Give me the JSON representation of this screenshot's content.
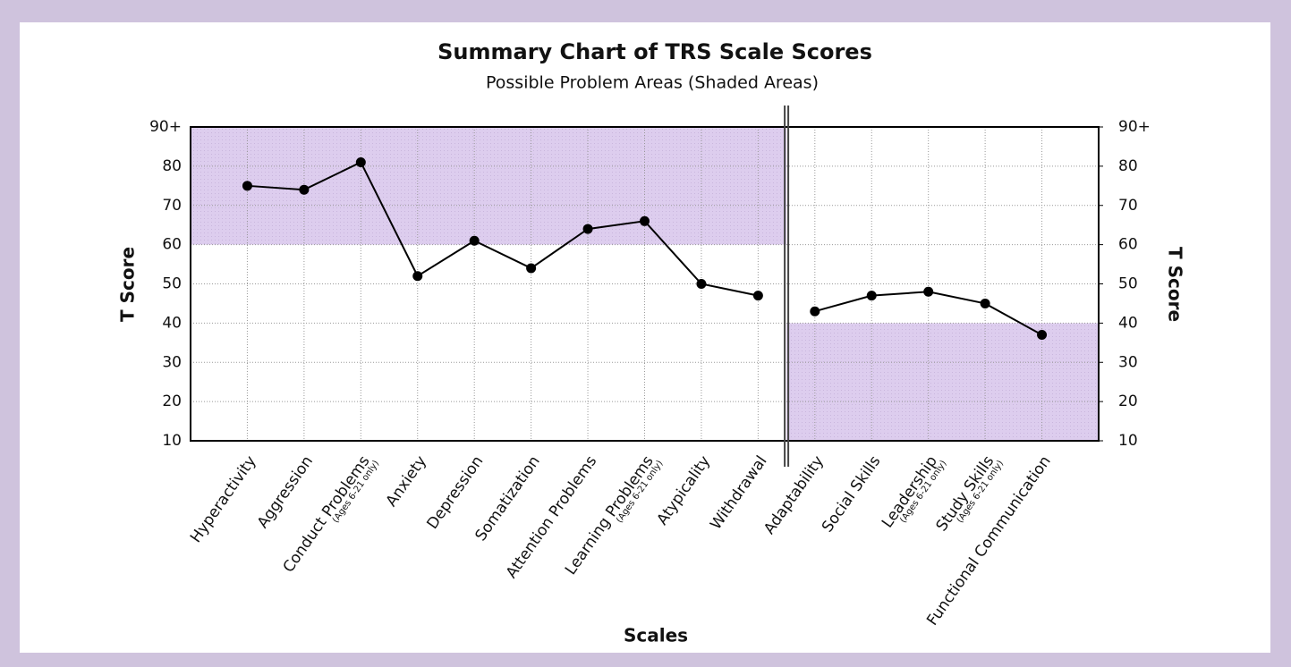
{
  "chart_data": {
    "type": "line",
    "title": "Summary Chart of TRS Scale Scores",
    "subtitle": "Possible Problem Areas (Shaded Areas)",
    "x_label": "Scales",
    "y_label": "T Score",
    "y2_label": "T Score",
    "ylim": [
      10,
      90
    ],
    "yticks": [
      10,
      20,
      30,
      40,
      50,
      60,
      70,
      80,
      {
        "value": 90,
        "label": "90+"
      }
    ],
    "y2lim": [
      10,
      90
    ],
    "y2ticks": [
      10,
      20,
      30,
      40,
      50,
      60,
      70,
      80,
      {
        "value": 90,
        "label": "90+"
      }
    ],
    "grid": true,
    "color": "#000000",
    "shade_color": "#ddcdee",
    "groups": [
      {
        "categories": [
          "Hyperactivity",
          "Aggression",
          "Conduct Problems",
          "Anxiety",
          "Depression",
          "Somatization",
          "Attention Problems",
          "Learning Problems",
          "Atypicality",
          "Withdrawal"
        ],
        "notes": [
          null,
          null,
          "(Ages 6-21 only)",
          null,
          null,
          null,
          null,
          "(Ages 6-21 only)",
          null,
          null
        ],
        "values": [
          75,
          74,
          81,
          52,
          61,
          54,
          64,
          66,
          50,
          47
        ],
        "shade": [
          60,
          90
        ]
      },
      {
        "categories": [
          "Adaptability",
          "Social Skills",
          "Leadership",
          "Study Skills",
          "Functional Communication"
        ],
        "notes": [
          null,
          null,
          "(Ages 6-21 only)",
          "(Ages 6-21 only)",
          null
        ],
        "values": [
          43,
          47,
          48,
          45,
          37
        ],
        "shade": [
          10,
          40
        ]
      }
    ]
  }
}
